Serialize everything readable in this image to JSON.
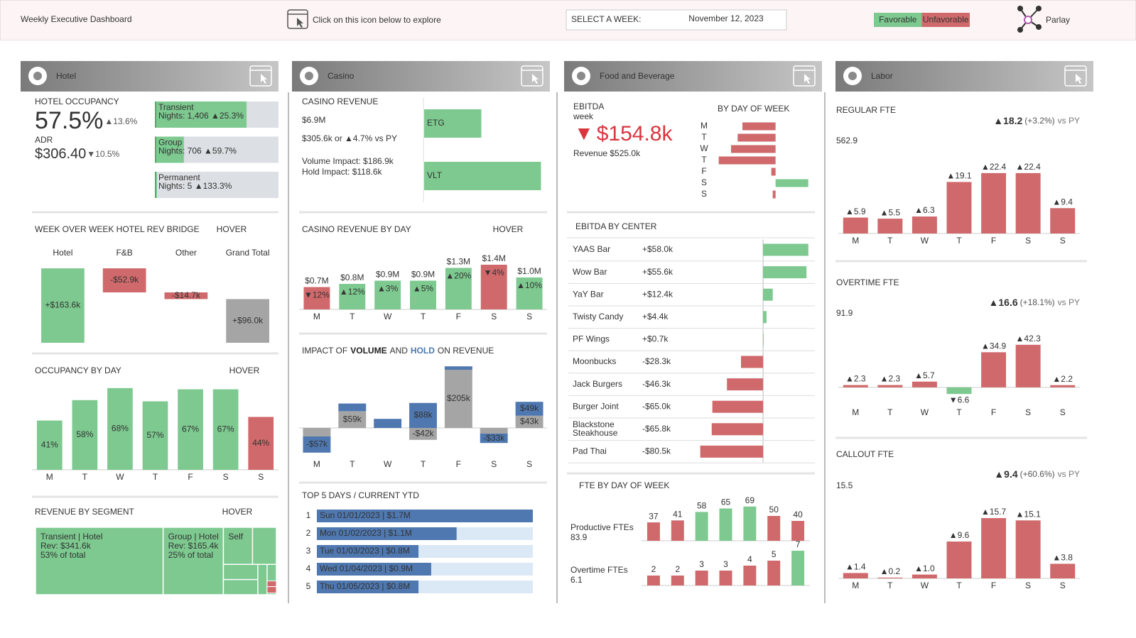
{
  "header": {
    "title": "Weekly Executive Dashboard",
    "hint": "Click on this icon below to explore",
    "week_label": "SELECT A WEEK:",
    "week": "November 12, 2023",
    "legend": [
      {
        "name": "Favorable",
        "color": "#7dc98f"
      },
      {
        "name": "Unfavorable",
        "color": "#d0696b"
      }
    ],
    "logo": "Parlay"
  },
  "panels": [
    "Hotel",
    "Casino",
    "Food and Beverage",
    "Labor"
  ],
  "hotel": {
    "occupancy": {
      "label": "HOTEL OCCUPANCY",
      "value": "57.5%",
      "change": "▲13.6%"
    },
    "adr": {
      "label": "ADR",
      "value": "$306.40",
      "change": "▼10.5%"
    }
  },
  "casino": {
    "label": "CASINO REVENUE",
    "value": "$6.9M",
    "change": "$305.6k or ▲4.7% vs PY",
    "volume": "Volume Impact: $186.9k",
    "hold": "Hold Impact: $118.6k"
  },
  "fnb": {
    "label": "EBITDA",
    "sub": "week",
    "arrow": "▼",
    "value": "$154.8k",
    "revenue": "Revenue $525.0k"
  },
  "chart_data": [
    {
      "type": "segment-bars",
      "categories": [
        "Transient",
        "Group",
        "Permanent"
      ],
      "details": [
        "Nights: 1,406 ▲25.3%",
        "Nights: 706 ▲59.7%",
        "Nights: 5 ▲133.3%"
      ],
      "values": [
        74,
        23,
        1
      ],
      "xlim": [
        0,
        100
      ],
      "color": "#7dc98f",
      "track_color": "#dcdfe3"
    },
    {
      "type": "waterfall",
      "title": "WEEK OVER WEEK HOTEL REV BRIDGE",
      "hover": "HOVER",
      "categories": [
        "Hotel",
        "F&B",
        "Other",
        "Grand Total"
      ],
      "values": [
        163.6,
        -52.9,
        -14.7,
        96.0
      ],
      "value_labels": [
        "+$163.6k",
        "-$52.9k",
        "-$14.7k",
        "+$96.0k"
      ],
      "colors": [
        "#7dc98f",
        "#d0696b",
        "#d0696b",
        "#a5a5a5"
      ],
      "ylim": [
        0,
        170
      ]
    },
    {
      "type": "bar",
      "title": "OCCUPANCY BY DAY",
      "hover": "HOVER",
      "categories": [
        "M",
        "T",
        "W",
        "T",
        "F",
        "S",
        "S"
      ],
      "values": [
        41,
        58,
        68,
        57,
        67,
        67,
        44
      ],
      "value_labels": [
        "41%",
        "58%",
        "68%",
        "57%",
        "67%",
        "67%",
        "44%"
      ],
      "colors": [
        "#7dc98f",
        "#7dc98f",
        "#7dc98f",
        "#7dc98f",
        "#7dc98f",
        "#7dc98f",
        "#d0696b"
      ],
      "ylim": [
        0,
        75
      ]
    },
    {
      "type": "treemap",
      "title": "REVENUE BY SEGMENT",
      "hover": "HOVER",
      "categories": [
        "Transient | Hotel",
        "Group | Hotel",
        "Self"
      ],
      "details": [
        "Rev: $341.6k",
        "Rev: $165.4k",
        null
      ],
      "values": [
        53,
        25,
        22
      ],
      "value_labels": [
        "53% of total",
        "25% of total",
        null
      ],
      "color": "#7dc98f"
    },
    {
      "type": "hbar",
      "categories": [
        "ETG",
        "VLT"
      ],
      "values": [
        2.3,
        4.7
      ],
      "xlim": [
        0,
        5
      ],
      "color": "#7dc98f"
    },
    {
      "type": "bar",
      "title": "CASINO REVENUE BY DAY",
      "hover": "HOVER",
      "categories": [
        "M",
        "T",
        "W",
        "T",
        "F",
        "S",
        "S"
      ],
      "values": [
        0.7,
        0.8,
        0.9,
        0.9,
        1.3,
        1.4,
        1.0
      ],
      "value_labels": [
        "$0.7M",
        "$0.8M",
        "$0.9M",
        "$0.9M",
        "$1.3M",
        "$1.4M",
        "$1.0M"
      ],
      "change_labels": [
        "▼12%",
        "▲12%",
        "▲3%",
        "▲5%",
        "▲20%",
        "▼4%",
        "▲10%"
      ],
      "colors": [
        "#d0696b",
        "#7dc98f",
        "#7dc98f",
        "#7dc98f",
        "#7dc98f",
        "#d0696b",
        "#7dc98f"
      ],
      "ylim": [
        0,
        1.6
      ]
    },
    {
      "type": "stacked-bar",
      "title_parts": [
        "IMPACT OF",
        "VOLUME",
        "AND",
        "HOLD",
        "ON REVENUE"
      ],
      "categories": [
        "M",
        "T",
        "W",
        "T",
        "F",
        "S",
        "S"
      ],
      "series": [
        {
          "color": "#a5a5a5",
          "values": [
            -30,
            59,
            0,
            -42,
            205,
            -20,
            43
          ],
          "value_labels": [
            null,
            "$59k",
            null,
            "-$42k",
            "$205k",
            null,
            "$43k"
          ]
        },
        {
          "color": "#4f78b0",
          "values": [
            -57,
            27,
            32,
            88,
            12,
            -33,
            49
          ],
          "value_labels": [
            "-$57k",
            null,
            null,
            "$88k",
            null,
            "-$33k",
            "$49k"
          ]
        }
      ],
      "ylim": [
        -100,
        220
      ]
    },
    {
      "type": "rank-bars",
      "title": "TOP 5 DAYS / CURRENT YTD",
      "ranks": [
        1,
        2,
        3,
        4,
        5
      ],
      "categories": [
        "Sun 01/01/2023 | $1.7M",
        "Mon 01/02/2023 | $1.1M",
        "Tue 01/03/2023 | $0.8M",
        "Wed 01/04/2023 | $0.9M",
        "Thu 01/05/2023 | $0.8M"
      ],
      "values": [
        1.7,
        1.1,
        0.8,
        0.9,
        0.8
      ],
      "xlim": [
        0,
        1.7
      ],
      "color": "#4f78b0",
      "track_color": "#dbe9f7"
    },
    {
      "type": "diverging-bar",
      "title": "BY DAY OF WEEK",
      "categories": [
        "M",
        "T",
        "W",
        "T",
        "F",
        "S",
        "S"
      ],
      "values": [
        -35,
        -40,
        -47,
        -60,
        -4.5,
        34.5,
        -3
      ],
      "colors": [
        "#d0696b",
        "#d0696b",
        "#d0696b",
        "#d0696b",
        "#d0696b",
        "#7dc98f",
        "#d0696b"
      ],
      "xlim": [
        -65,
        40
      ]
    },
    {
      "type": "diverging-bar",
      "title": "EBITDA BY CENTER",
      "categories": [
        "YAAS Bar",
        "Wow Bar",
        "YaY Bar",
        "Twisty Candy",
        "PF Wings",
        "Moonbucks",
        "Jack Burgers",
        "Burger Joint",
        "Blackstone Steakhouse",
        "Pad Thai"
      ],
      "values": [
        58.0,
        55.6,
        12.4,
        4.4,
        0.7,
        -28.3,
        -46.3,
        -65.0,
        -65.8,
        -80.5
      ],
      "value_labels": [
        "+$58.0k",
        "+$55.6k",
        "+$12.4k",
        "+$4.4k",
        "+$0.7k",
        "-$28.3k",
        "-$46.3k",
        "-$65.0k",
        "-$65.8k",
        "-$80.5k"
      ],
      "colors": [
        "#7dc98f",
        "#7dc98f",
        "#7dc98f",
        "#7dc98f",
        "#7dc98f",
        "#d0696b",
        "#d0696b",
        "#d0696b",
        "#d0696b",
        "#d0696b"
      ],
      "xlim": [
        -82,
        60
      ]
    },
    {
      "type": "bar-rows",
      "title": "FTE BY DAY OF WEEK",
      "series": [
        {
          "name": "Productive FTEs",
          "total": "83.9",
          "values": [
            37,
            41,
            58,
            65,
            69,
            50,
            40
          ],
          "value_labels": [
            "37",
            "41",
            "58",
            "65",
            "69",
            "50",
            "40"
          ],
          "colors": [
            "#d0696b",
            "#d0696b",
            "#7dc98f",
            "#7dc98f",
            "#7dc98f",
            "#d0696b",
            "#d0696b"
          ],
          "ylim": [
            0,
            80
          ]
        },
        {
          "name": "Overtime FTEs",
          "total": "6.1",
          "values": [
            2,
            2,
            3,
            3,
            4,
            5,
            7
          ],
          "value_labels": [
            "2",
            "2",
            "3",
            "3",
            "4",
            "5",
            "7"
          ],
          "colors": [
            "#d0696b",
            "#d0696b",
            "#d0696b",
            "#d0696b",
            "#d0696b",
            "#d0696b",
            "#7dc98f"
          ],
          "ylim": [
            0,
            8
          ]
        }
      ]
    },
    {
      "type": "bar",
      "title": "REGULAR FTE",
      "kpi": "562.9",
      "change": "▲18.2",
      "change_pct": "(+3.2%)",
      "vs": "vs PY",
      "categories": [
        "M",
        "T",
        "W",
        "T",
        "F",
        "S",
        "S"
      ],
      "values": [
        5.9,
        5.5,
        6.3,
        19.1,
        22.4,
        22.4,
        9.4
      ],
      "value_labels": [
        "▲5.9",
        "▲5.5",
        "▲6.3",
        "▲19.1",
        "▲22.4",
        "▲22.4",
        "▲9.4"
      ],
      "colors": [
        "#d0696b",
        "#d0696b",
        "#d0696b",
        "#d0696b",
        "#d0696b",
        "#d0696b",
        "#d0696b"
      ],
      "ylim": [
        0,
        25
      ]
    },
    {
      "type": "bar",
      "title": "OVERTIME FTE",
      "kpi": "91.9",
      "change": "▲16.6",
      "change_pct": "(+18.1%)",
      "vs": "vs PY",
      "categories": [
        "M",
        "T",
        "W",
        "T",
        "F",
        "S",
        "S"
      ],
      "values": [
        2.3,
        2.3,
        5.7,
        -6.6,
        34.9,
        42.3,
        2.2
      ],
      "value_labels": [
        "▲2.3",
        "▲2.3",
        "▲5.7",
        "▼6.6",
        "▲34.9",
        "▲42.3",
        "▲2.2"
      ],
      "colors": [
        "#d0696b",
        "#d0696b",
        "#d0696b",
        "#7dc98f",
        "#d0696b",
        "#d0696b",
        "#d0696b"
      ],
      "ylim": [
        -10,
        45
      ]
    },
    {
      "type": "bar",
      "title": "CALLOUT FTE",
      "kpi": "15.5",
      "change": "▲9.4",
      "change_pct": "(+60.6%)",
      "vs": "vs PY",
      "categories": [
        "M",
        "T",
        "W",
        "T",
        "F",
        "S",
        "S"
      ],
      "values": [
        1.4,
        0.2,
        1.0,
        9.6,
        15.7,
        15.1,
        3.8
      ],
      "value_labels": [
        "▲1.4",
        "▲0.2",
        "▲1.0",
        "▲9.6",
        "▲15.7",
        "▲15.1",
        "▲3.8"
      ],
      "colors": [
        "#d0696b",
        "#d0696b",
        "#d0696b",
        "#d0696b",
        "#d0696b",
        "#d0696b",
        "#d0696b"
      ],
      "ylim": [
        0,
        17
      ]
    }
  ]
}
